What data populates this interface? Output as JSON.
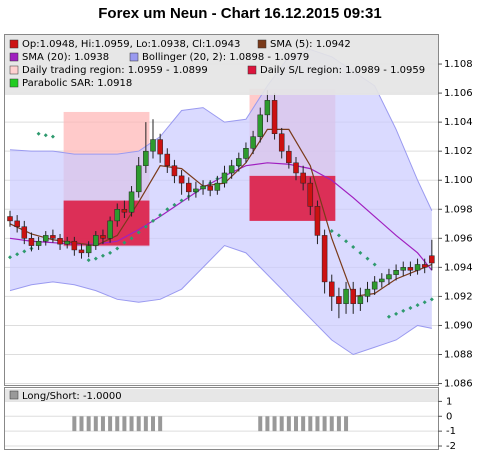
{
  "chart_data": {
    "type": "candlestick",
    "title": "Forex um Neun - Chart 16.12.2015 09:31",
    "ylim": [
      1.0859,
      1.11
    ],
    "yticks": [
      1.086,
      1.088,
      {
        "value": 1.09,
        "label": "1.090"
      },
      1.092,
      1.094,
      1.096,
      1.098,
      {
        "value": 1.1,
        "label": "1.100"
      },
      1.102,
      1.104,
      1.106,
      1.108
    ],
    "grid": true,
    "up_color": "#2e9a2e",
    "down_color": "#cc1111",
    "open": [
      1.0975,
      1.0972,
      1.0968,
      1.096,
      1.0955,
      1.0958,
      1.0962,
      1.096,
      1.0956,
      1.0958,
      1.0952,
      1.095,
      1.0955,
      1.0962,
      1.096,
      1.0972,
      1.098,
      1.0978,
      1.0992,
      1.101,
      1.102,
      1.1028,
      1.1018,
      1.101,
      1.1003,
      1.0998,
      1.0992,
      1.0994,
      1.0996,
      1.0993,
      1.0998,
      1.1005,
      1.101,
      1.1015,
      1.1022,
      1.103,
      1.1045,
      1.1055,
      1.1032,
      1.102,
      1.1012,
      1.1005,
      1.0998,
      1.0982,
      1.0962,
      1.093,
      1.092,
      1.0915,
      1.0925,
      1.0915,
      1.092,
      1.0925,
      1.093,
      1.0932,
      1.0935,
      1.0938,
      1.094,
      1.0938,
      1.0942,
      1.0948
    ],
    "high": [
      1.0979,
      1.0976,
      1.0972,
      1.0964,
      1.0961,
      1.0965,
      1.0966,
      1.0963,
      1.0961,
      1.0961,
      1.0956,
      1.0958,
      1.0965,
      1.0966,
      1.0975,
      1.0984,
      1.0986,
      1.0996,
      1.1016,
      1.104,
      1.1042,
      1.1032,
      1.1022,
      1.1014,
      1.1007,
      1.1002,
      1.0999,
      1.1,
      1.1,
      1.1003,
      1.101,
      1.1014,
      1.1019,
      1.1026,
      1.1034,
      1.105,
      1.1062,
      1.106,
      1.1036,
      1.1024,
      1.1016,
      1.101,
      1.1002,
      1.0986,
      1.0966,
      1.0935,
      1.0926,
      1.093,
      1.093,
      1.0926,
      1.093,
      1.0934,
      1.0936,
      1.0939,
      1.0942,
      1.0944,
      1.0944,
      1.0946,
      1.0946,
      1.0959
    ],
    "low": [
      1.0968,
      1.0964,
      1.0956,
      1.0951,
      1.0952,
      1.0955,
      1.0957,
      1.0952,
      1.0953,
      1.0948,
      1.0946,
      1.0947,
      1.0952,
      1.0956,
      1.0957,
      1.0968,
      1.0974,
      1.0975,
      1.0988,
      1.1005,
      1.1015,
      1.1012,
      1.1005,
      1.0998,
      1.099,
      1.0986,
      1.0988,
      1.099,
      1.0989,
      1.099,
      1.0995,
      1.1001,
      1.1006,
      1.1012,
      1.1018,
      1.1026,
      1.104,
      1.1028,
      1.1015,
      1.1008,
      1.1,
      1.0993,
      1.0976,
      1.0956,
      1.0922,
      1.091,
      1.0905,
      1.0908,
      1.0908,
      1.091,
      1.0916,
      1.0921,
      1.0926,
      1.0928,
      1.0931,
      1.0934,
      1.0934,
      1.0935,
      1.0936,
      1.0938
    ],
    "close": [
      1.0972,
      1.0968,
      1.096,
      1.0955,
      1.0958,
      1.0962,
      1.096,
      1.0956,
      1.0958,
      1.0952,
      1.095,
      1.0955,
      1.0962,
      1.096,
      1.0972,
      1.098,
      1.0978,
      1.0992,
      1.101,
      1.102,
      1.1028,
      1.1018,
      1.101,
      1.1003,
      1.0998,
      1.0992,
      1.0994,
      1.0996,
      1.0993,
      1.0998,
      1.1005,
      1.101,
      1.1015,
      1.1022,
      1.103,
      1.1045,
      1.1055,
      1.1032,
      1.102,
      1.1012,
      1.1005,
      1.0998,
      1.0982,
      1.0962,
      1.093,
      1.092,
      1.0915,
      1.0925,
      1.0915,
      1.092,
      1.0925,
      1.093,
      1.0932,
      1.0935,
      1.0938,
      1.094,
      1.0938,
      1.0942,
      1.094,
      1.0943
    ],
    "sma5": {
      "color": "#7a3a1a",
      "x": [
        0,
        3,
        6,
        9,
        12,
        15,
        18,
        21,
        24,
        27,
        30,
        33,
        36,
        39,
        42,
        45,
        48,
        51,
        54,
        57,
        59
      ],
      "values": [
        1.097,
        1.0963,
        1.0959,
        1.0957,
        1.0955,
        1.0962,
        1.0985,
        1.101,
        1.1008,
        1.0996,
        1.0998,
        1.1012,
        1.1035,
        1.1035,
        1.101,
        1.096,
        1.092,
        1.0922,
        1.0932,
        1.0938,
        1.0942
      ]
    },
    "sma20": {
      "color": "#a020c0",
      "x": [
        0,
        3,
        6,
        9,
        12,
        15,
        18,
        21,
        24,
        27,
        30,
        33,
        36,
        39,
        42,
        45,
        48,
        51,
        54,
        57,
        59
      ],
      "values": [
        1.096,
        1.0958,
        1.0957,
        1.0956,
        1.0956,
        1.0958,
        1.0966,
        1.0975,
        1.0985,
        1.0995,
        1.1003,
        1.101,
        1.1012,
        1.1011,
        1.1008,
        1.1,
        1.0988,
        1.0975,
        1.0962,
        1.095,
        1.0938
      ]
    },
    "bollinger": {
      "color": "#9a9af0",
      "fill": "#cacaff",
      "x": [
        0,
        3,
        6,
        9,
        12,
        15,
        18,
        21,
        24,
        27,
        30,
        33,
        36,
        39,
        42,
        45,
        48,
        51,
        54,
        57,
        59
      ],
      "upper": [
        1.1021,
        1.102,
        1.102,
        1.1018,
        1.1018,
        1.1018,
        1.102,
        1.103,
        1.1048,
        1.105,
        1.104,
        1.1042,
        1.1065,
        1.1085,
        1.109,
        1.1085,
        1.1075,
        1.1065,
        1.1035,
        1.1,
        1.0979
      ],
      "lower": [
        1.0924,
        1.0928,
        1.093,
        1.0928,
        1.0924,
        1.0918,
        1.0916,
        1.0918,
        1.0925,
        1.094,
        1.0955,
        1.095,
        1.0935,
        1.092,
        1.0905,
        1.089,
        1.088,
        1.0885,
        1.089,
        1.09,
        1.0898
      ]
    },
    "sar": {
      "color": "#2e9a6e",
      "values": [
        1.0947,
        1.0949,
        1.0951,
        1.0953,
        1.1032,
        1.1031,
        1.103,
        null,
        null,
        null,
        null,
        1.0945,
        1.0946,
        1.0948,
        1.095,
        1.0953,
        1.0957,
        1.096,
        1.0964,
        1.0968,
        1.0972,
        1.0976,
        1.098,
        1.0983,
        1.0986,
        1.0989,
        1.0992,
        1.0995,
        1.0998,
        1.1001,
        1.1004,
        1.1007,
        1.101,
        null,
        null,
        null,
        null,
        null,
        null,
        null,
        null,
        null,
        null,
        null,
        null,
        1.0965,
        1.0962,
        1.0958,
        1.0954,
        1.095,
        1.0946,
        1.0942,
        null,
        1.0906,
        1.0908,
        1.091,
        1.0912,
        1.0914,
        1.0916,
        1.0918
      ]
    },
    "trading_regions": {
      "color": "#ffb4b4",
      "regions": [
        {
          "start": 7.5,
          "end": 19.5,
          "high": 1.1047,
          "low": 1.0954
        },
        {
          "start": 33.5,
          "end": 45.5,
          "high": 1.1063,
          "low": 1.0972
        }
      ]
    },
    "sl_regions": {
      "color": "#dc143c",
      "regions": [
        {
          "start": 7.5,
          "end": 19.5,
          "high": 1.0986,
          "low": 1.0955
        },
        {
          "start": 33.5,
          "end": 45.5,
          "high": 1.1003,
          "low": 1.0972
        }
      ]
    },
    "legend": [
      {
        "label": "Op:1.0948, Hi:1.0959, Lo:1.0938, Cl:1.0943",
        "color": "#cc1111"
      },
      {
        "label": "SMA (5): 1.0942",
        "color": "#7a3a1a"
      },
      {
        "label": "SMA (20): 1.0938",
        "color": "#a020c0"
      },
      {
        "label": "Bollinger (20, 2): 1.0898 - 1.0979",
        "color": "#9a9af0"
      },
      {
        "label": "Daily trading region: 1.0959 - 1.0899",
        "color": "#ffd0d0"
      },
      {
        "label": "Daily S/L region: 1.0989 - 1.0959",
        "color": "#dc143c"
      },
      {
        "label": "Parabolic SAR: 1.0918",
        "color": "#22cc22"
      }
    ],
    "long_short": {
      "label": "Long/Short: -1.0000",
      "color": "#999999",
      "ylim": [
        -2.2,
        1.9
      ],
      "yticks": [
        1,
        0,
        -1,
        -2
      ],
      "values": [
        0,
        0,
        0,
        0,
        0,
        0,
        0,
        0,
        0,
        -1,
        -1,
        -1,
        -1,
        -1,
        -1,
        -1,
        -1,
        -1,
        -1,
        -1,
        -1,
        -1,
        0,
        0,
        0,
        0,
        0,
        0,
        0,
        0,
        0,
        0,
        0,
        0,
        0,
        -1,
        -1,
        -1,
        -1,
        -1,
        -1,
        -1,
        -1,
        -1,
        -1,
        -1,
        -1,
        -1,
        0,
        0,
        0,
        0,
        0,
        0,
        0,
        0,
        0,
        0,
        0,
        0
      ]
    }
  }
}
